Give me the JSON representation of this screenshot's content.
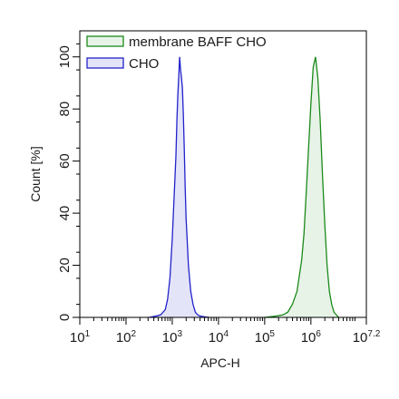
{
  "chart_data": {
    "type": "area",
    "xlabel": "APC-H",
    "ylabel": "Count [%]",
    "x_scale": "log10",
    "xlim": [
      10,
      15848932
    ],
    "ylim": [
      0,
      110
    ],
    "x_ticks": [
      {
        "base": "10",
        "exp": "1",
        "value": 10
      },
      {
        "base": "10",
        "exp": "2",
        "value": 100
      },
      {
        "base": "10",
        "exp": "3",
        "value": 1000
      },
      {
        "base": "10",
        "exp": "4",
        "value": 10000
      },
      {
        "base": "10",
        "exp": "5",
        "value": 100000
      },
      {
        "base": "10",
        "exp": "6",
        "value": 1000000
      },
      {
        "base": "10",
        "exp": "7.2",
        "value": 15848932
      }
    ],
    "y_ticks": [
      "0",
      "20",
      "40",
      "60",
      "80",
      "100"
    ],
    "y_tick_values": [
      0,
      20,
      40,
      60,
      80,
      100
    ],
    "legend_position": "top-left",
    "series": [
      {
        "name": "membrane BAFF CHO",
        "color": "#1a8a1a",
        "fill": "#e8f3e8",
        "x": [
          100000,
          178000,
          251000,
          316000,
          398000,
          501000,
          631000,
          708000,
          794000,
          891000,
          1000000,
          1122000,
          1259000,
          1413000,
          1585000,
          1778000,
          1995000,
          2239000,
          2512000,
          2818000,
          3162000,
          3548000,
          3981000
        ],
        "y": [
          0,
          0.5,
          1,
          2,
          5,
          10,
          22,
          32,
          48,
          65,
          82,
          96,
          100,
          92,
          76,
          55,
          36,
          20,
          10,
          5,
          2,
          1,
          0
        ]
      },
      {
        "name": "CHO",
        "color": "#2222cc",
        "fill": "#e4e4f8",
        "x": [
          316,
          447,
          562,
          708,
          794,
          891,
          1000,
          1122,
          1202,
          1259,
          1318,
          1380,
          1445,
          1514,
          1585,
          1660,
          1738,
          1820,
          1905,
          1995,
          2239,
          2512,
          2818,
          3162,
          3548,
          3981,
          5012,
          6310
        ],
        "y": [
          0,
          0.5,
          1,
          3,
          7,
          15,
          30,
          50,
          62,
          75,
          85,
          92,
          100,
          95,
          92,
          88,
          78,
          65,
          50,
          38,
          20,
          10,
          5,
          2,
          1,
          0.5,
          0.2,
          0
        ]
      }
    ]
  }
}
